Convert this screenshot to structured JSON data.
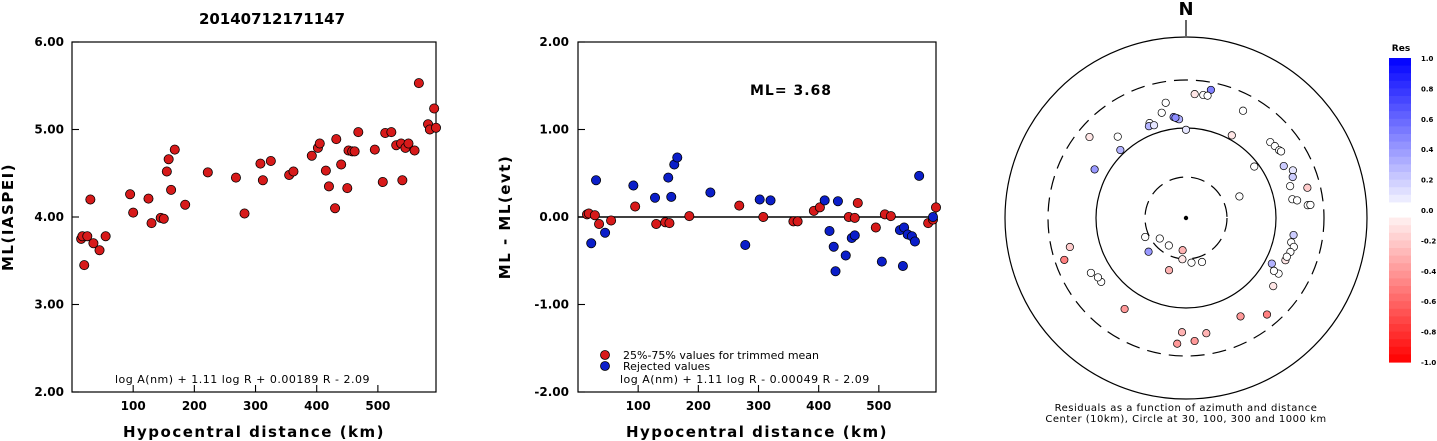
{
  "title": "20140712171147",
  "colors": {
    "accepted": "#d71a1a",
    "rejected": "#0b1ec9",
    "axis": "#000000"
  },
  "chart_data": [
    {
      "type": "scatter",
      "xlabel": "Hypocentral distance (km)",
      "ylabel": "ML(IASPEI)",
      "xlim": [
        0,
        595
      ],
      "ylim": [
        2.0,
        6.0
      ],
      "xticks": [
        "100",
        "200",
        "300",
        "400",
        "500"
      ],
      "yticks": [
        "2.00",
        "3.00",
        "4.00",
        "5.00",
        "6.00"
      ],
      "formula": "log A(nm) + 1.11 log R + 0.00189 R - 2.09",
      "series": [
        {
          "color": "#d71a1a",
          "points": [
            [
              15,
              3.75
            ],
            [
              17,
              3.78
            ],
            [
              20,
              3.45
            ],
            [
              25,
              3.78
            ],
            [
              30,
              4.2
            ],
            [
              35,
              3.7
            ],
            [
              45,
              3.62
            ],
            [
              55,
              3.78
            ],
            [
              95,
              4.26
            ],
            [
              100,
              4.05
            ],
            [
              125,
              4.21
            ],
            [
              130,
              3.93
            ],
            [
              145,
              3.99
            ],
            [
              150,
              3.98
            ],
            [
              155,
              4.52
            ],
            [
              158,
              4.66
            ],
            [
              162,
              4.31
            ],
            [
              168,
              4.77
            ],
            [
              185,
              4.14
            ],
            [
              222,
              4.51
            ],
            [
              268,
              4.45
            ],
            [
              282,
              4.04
            ],
            [
              308,
              4.61
            ],
            [
              312,
              4.42
            ],
            [
              325,
              4.64
            ],
            [
              355,
              4.48
            ],
            [
              362,
              4.52
            ],
            [
              392,
              4.7
            ],
            [
              402,
              4.79
            ],
            [
              405,
              4.84
            ],
            [
              415,
              4.53
            ],
            [
              420,
              4.35
            ],
            [
              430,
              4.1
            ],
            [
              432,
              4.89
            ],
            [
              440,
              4.6
            ],
            [
              450,
              4.33
            ],
            [
              452,
              4.76
            ],
            [
              458,
              4.75
            ],
            [
              462,
              4.75
            ],
            [
              468,
              4.97
            ],
            [
              495,
              4.77
            ],
            [
              508,
              4.4
            ],
            [
              512,
              4.96
            ],
            [
              522,
              4.97
            ],
            [
              530,
              4.82
            ],
            [
              538,
              4.84
            ],
            [
              540,
              4.42
            ],
            [
              545,
              4.79
            ],
            [
              550,
              4.84
            ],
            [
              560,
              4.76
            ],
            [
              567,
              5.53
            ],
            [
              582,
              5.06
            ],
            [
              585,
              5.0
            ],
            [
              592,
              5.24
            ],
            [
              595,
              5.02
            ]
          ]
        }
      ]
    },
    {
      "type": "scatter",
      "xlabel": "Hypocentral distance (km)",
      "ylabel": "ML - ML(evt)",
      "xlim": [
        0,
        595
      ],
      "ylim": [
        -2.0,
        2.0
      ],
      "xticks": [
        "100",
        "200",
        "300",
        "400",
        "500"
      ],
      "yticks": [
        "-2.00",
        "-1.00",
        "0.00",
        "1.00",
        "2.00"
      ],
      "hline": 0.0,
      "annotation": "ML= 3.68",
      "legend": [
        "25%-75% values for trimmed mean",
        "Rejected values"
      ],
      "formula": "log A(nm) + 1.11 log R - 0.00049 R - 2.09",
      "series": [
        {
          "name": "25%-75% values for trimmed mean",
          "color": "#d71a1a",
          "points": [
            [
              15,
              0.03
            ],
            [
              18,
              0.04
            ],
            [
              28,
              0.02
            ],
            [
              35,
              -0.08
            ],
            [
              55,
              -0.04
            ],
            [
              95,
              0.12
            ],
            [
              130,
              -0.08
            ],
            [
              145,
              -0.06
            ],
            [
              152,
              -0.07
            ],
            [
              185,
              0.01
            ],
            [
              268,
              0.13
            ],
            [
              308,
              0.0
            ],
            [
              358,
              -0.05
            ],
            [
              365,
              -0.05
            ],
            [
              392,
              0.07
            ],
            [
              402,
              0.11
            ],
            [
              450,
              0.0
            ],
            [
              460,
              -0.01
            ],
            [
              465,
              0.16
            ],
            [
              495,
              -0.12
            ],
            [
              510,
              0.03
            ],
            [
              520,
              0.01
            ],
            [
              582,
              -0.07
            ],
            [
              590,
              -0.03
            ],
            [
              595,
              0.11
            ]
          ]
        },
        {
          "name": "Rejected values",
          "color": "#0b1ec9",
          "points": [
            [
              22,
              -0.3
            ],
            [
              30,
              0.42
            ],
            [
              45,
              -0.18
            ],
            [
              92,
              0.36
            ],
            [
              128,
              0.22
            ],
            [
              150,
              0.45
            ],
            [
              155,
              0.23
            ],
            [
              160,
              0.6
            ],
            [
              165,
              0.68
            ],
            [
              220,
              0.28
            ],
            [
              278,
              -0.32
            ],
            [
              302,
              0.2
            ],
            [
              320,
              0.19
            ],
            [
              410,
              0.19
            ],
            [
              418,
              -0.16
            ],
            [
              425,
              -0.34
            ],
            [
              428,
              -0.62
            ],
            [
              432,
              0.18
            ],
            [
              445,
              -0.44
            ],
            [
              455,
              -0.24
            ],
            [
              460,
              -0.21
            ],
            [
              505,
              -0.51
            ],
            [
              535,
              -0.15
            ],
            [
              540,
              -0.56
            ],
            [
              542,
              -0.12
            ],
            [
              548,
              -0.2
            ],
            [
              555,
              -0.22
            ],
            [
              560,
              -0.28
            ],
            [
              567,
              0.47
            ],
            [
              590,
              0.0
            ]
          ]
        }
      ]
    }
  ],
  "polar": {
    "north_label": "N",
    "caption_line1": "Residuals as a function of azimuth and distance",
    "caption_line2": "Center (10km), Circle at 30, 100, 300 and 1000 km",
    "colorbar_title": "Res",
    "colorbar_ticks": [
      "1.0",
      "0.8",
      "0.6",
      "0.4",
      "0.2",
      "0.0",
      "-0.2",
      "-0.4",
      "-0.6",
      "-0.8",
      "-1.0"
    ],
    "stations": [
      {
        "az": 11,
        "r": 1.45,
        "res": 0.5
      },
      {
        "az": 4,
        "r": 1.38,
        "res": -0.1
      },
      {
        "az": 8,
        "r": 1.38,
        "res": 0.0
      },
      {
        "az": 10,
        "r": 1.38,
        "res": 0.0
      },
      {
        "az": -10,
        "r": 1.3,
        "res": 0.0
      },
      {
        "az": -13,
        "r": 1.2,
        "res": 0.0
      },
      {
        "az": -5,
        "r": 1.11,
        "res": 0.3
      },
      {
        "az": -4,
        "r": 1.1,
        "res": 0.3
      },
      {
        "az": -7,
        "r": 1.13,
        "res": 0.45
      },
      {
        "az": -6,
        "r": 1.12,
        "res": 0.45
      },
      {
        "az": 0,
        "r": 0.98,
        "res": 0.1
      },
      {
        "az": -21,
        "r": 1.13,
        "res": 0.0
      },
      {
        "az": -22,
        "r": 1.1,
        "res": 0.3
      },
      {
        "az": -19,
        "r": 1.09,
        "res": 0.1
      },
      {
        "az": -40,
        "r": 1.18,
        "res": 0.0
      },
      {
        "az": -50,
        "r": 1.4,
        "res": -0.1
      },
      {
        "az": -44,
        "r": 1.05,
        "res": 0.3
      },
      {
        "az": -62,
        "r": 1.15,
        "res": 0.4
      },
      {
        "az": 28,
        "r": 1.35,
        "res": 0.0
      },
      {
        "az": 29,
        "r": 1.05,
        "res": -0.1
      },
      {
        "az": 53,
        "r": 0.95,
        "res": 0.0
      },
      {
        "az": 48,
        "r": 1.26,
        "res": 0.0
      },
      {
        "az": 51,
        "r": 1.27,
        "res": 0.0
      },
      {
        "az": 54,
        "r": 1.28,
        "res": 0.0
      },
      {
        "az": 55,
        "r": 1.29,
        "res": 0.0
      },
      {
        "az": 62,
        "r": 1.23,
        "res": 0.2
      },
      {
        "az": 66,
        "r": 1.3,
        "res": 0.1
      },
      {
        "az": 69,
        "r": 1.27,
        "res": 0.2
      },
      {
        "az": 76,
        "r": 1.39,
        "res": -0.2
      },
      {
        "az": 73,
        "r": 1.21,
        "res": 0.0
      },
      {
        "az": 80,
        "r": 1.2,
        "res": 0.0
      },
      {
        "az": 81,
        "r": 1.25,
        "res": 0.0
      },
      {
        "az": 84,
        "r": 1.36,
        "res": 0.0
      },
      {
        "az": 84,
        "r": 1.39,
        "res": 0.0
      },
      {
        "az": 99,
        "r": 1.21,
        "res": 0.2
      },
      {
        "az": 103,
        "r": 1.2,
        "res": 0.0
      },
      {
        "az": 105,
        "r": 1.24,
        "res": 0.0
      },
      {
        "az": 108,
        "r": 1.22,
        "res": 0.0
      },
      {
        "az": 113,
        "r": 1.2,
        "res": -0.1
      },
      {
        "az": 111,
        "r": 1.2,
        "res": 0.0
      },
      {
        "az": 121,
        "r": 1.2,
        "res": 0.0
      },
      {
        "az": 118,
        "r": 1.08,
        "res": 0.3
      },
      {
        "az": 121,
        "r": 1.14,
        "res": 0.0
      },
      {
        "az": 128,
        "r": 1.23,
        "res": -0.1
      },
      {
        "az": 140,
        "r": 1.4,
        "res": -0.5
      },
      {
        "az": 151,
        "r": 1.25,
        "res": -0.4
      },
      {
        "az": 170,
        "r": 1.3,
        "res": -0.3
      },
      {
        "az": 176,
        "r": 1.37,
        "res": -0.4
      },
      {
        "az": 182,
        "r": 1.27,
        "res": -0.3
      },
      {
        "az": 184,
        "r": 1.4,
        "res": -0.4
      },
      {
        "az": 214,
        "r": 1.22,
        "res": -0.4
      },
      {
        "az": 233,
        "r": 1.18,
        "res": 0.0
      },
      {
        "az": 236,
        "r": 1.18,
        "res": 0.0
      },
      {
        "az": 240,
        "r": 1.22,
        "res": 0.0
      },
      {
        "az": 251,
        "r": 1.43,
        "res": -0.5
      },
      {
        "az": 256,
        "r": 1.33,
        "res": -0.2
      },
      {
        "az": 186,
        "r": 0.36,
        "res": -0.3
      },
      {
        "az": 185,
        "r": 0.46,
        "res": -0.1
      },
      {
        "az": 173,
        "r": 0.5,
        "res": 0.0
      },
      {
        "az": 198,
        "r": 0.61,
        "res": -0.3
      },
      {
        "az": 212,
        "r": 0.36,
        "res": 0.0
      },
      {
        "az": 228,
        "r": 0.56,
        "res": 0.4
      },
      {
        "az": 232,
        "r": 0.37,
        "res": 0.0
      },
      {
        "az": 245,
        "r": 0.5,
        "res": 0.0
      },
      {
        "az": 160,
        "r": 0.52,
        "res": 0.0
      },
      {
        "az": 68,
        "r": 0.64,
        "res": 0.0
      }
    ]
  }
}
